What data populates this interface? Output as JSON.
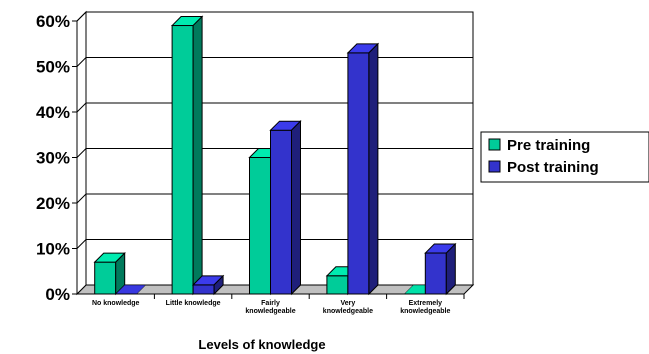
{
  "chart_data": {
    "type": "bar",
    "categories": [
      [
        "No knowledge"
      ],
      [
        "Little knowledge"
      ],
      [
        "Fairly",
        "knowledgeable"
      ],
      [
        "Very",
        "knowledgeable"
      ],
      [
        "Extremely",
        "knowledgeable"
      ]
    ],
    "series": [
      {
        "name": "Pre training",
        "values": [
          7,
          59,
          30,
          4,
          0
        ],
        "color": "#00cc99"
      },
      {
        "name": "Post training",
        "values": [
          0,
          2,
          36,
          53,
          9
        ],
        "color": "#3333cc"
      }
    ],
    "xlabel": "Levels of knowledge",
    "ylabel": "",
    "ylim": [
      0,
      60
    ],
    "yticks": [
      "0%",
      "10%",
      "20%",
      "30%",
      "40%",
      "50%",
      "60%"
    ],
    "grid": true,
    "three_d": true,
    "legend_position": "right"
  }
}
